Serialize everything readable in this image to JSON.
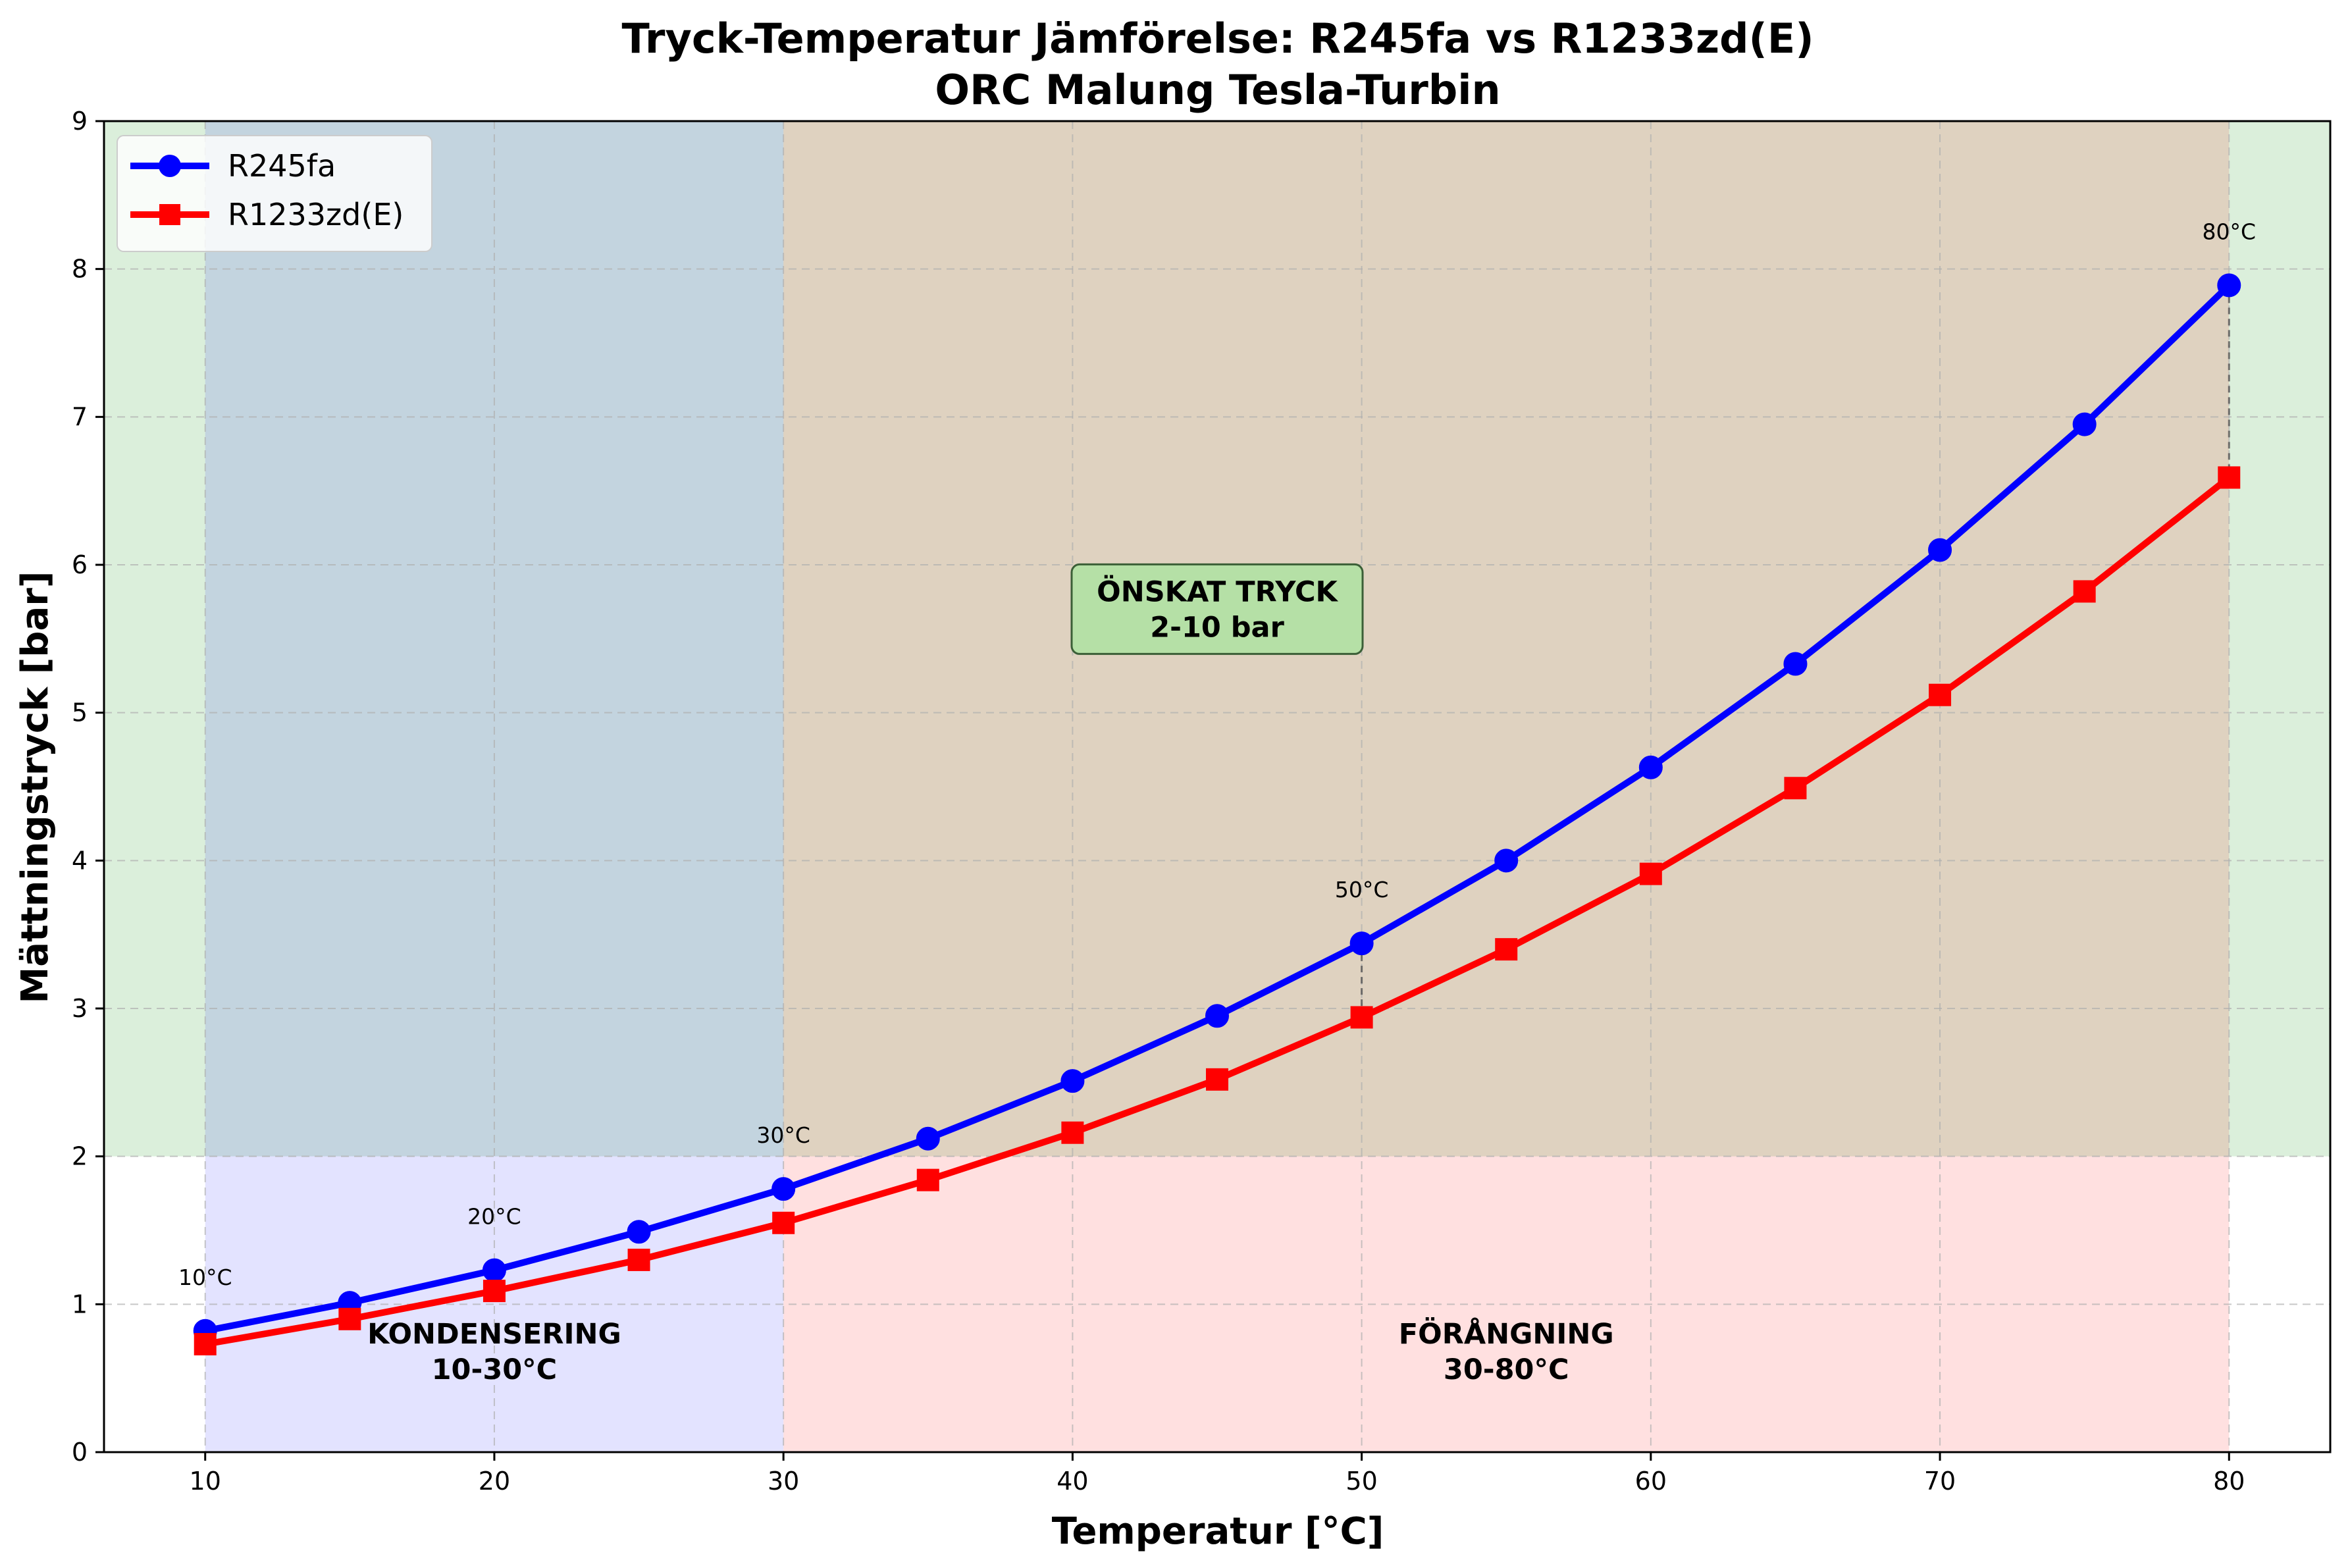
{
  "chart_data": {
    "type": "line",
    "title": "Tryck-Temperatur Jämförelse: R245fa vs R1233zd(E)",
    "subtitle": "ORC Malung Tesla-Turbin",
    "xlabel": "Temperatur [°C]",
    "ylabel": "Mättningstryck [bar]",
    "xlim": [
      6.5,
      83.5
    ],
    "ylim": [
      0,
      9
    ],
    "x_ticks": [
      10,
      20,
      30,
      40,
      50,
      60,
      70,
      80
    ],
    "y_ticks": [
      0,
      1,
      2,
      3,
      4,
      5,
      6,
      7,
      8,
      9
    ],
    "grid": true,
    "legend_position": "top-left",
    "x": [
      10,
      15,
      20,
      25,
      30,
      35,
      40,
      45,
      50,
      55,
      60,
      65,
      70,
      75,
      80
    ],
    "series": [
      {
        "name": "R245fa",
        "color": "#0000ff",
        "marker": "circle",
        "values": [
          0.82,
          1.01,
          1.23,
          1.49,
          1.78,
          2.12,
          2.51,
          2.95,
          3.44,
          4.0,
          4.63,
          5.33,
          6.1,
          6.95,
          7.89
        ]
      },
      {
        "name": "R1233zd(E)",
        "color": "#ff0000",
        "marker": "square",
        "values": [
          0.73,
          0.9,
          1.09,
          1.3,
          1.55,
          1.84,
          2.16,
          2.52,
          2.94,
          3.4,
          3.91,
          4.49,
          5.12,
          5.82,
          6.59
        ]
      }
    ],
    "regions": [
      {
        "type": "y-band",
        "from": 2,
        "to": 9,
        "color": "#2ca02c",
        "opacity": 0.17
      },
      {
        "type": "x-band",
        "from": 10,
        "to": 30,
        "color": "#0000ff",
        "opacity": 0.11
      },
      {
        "type": "x-band",
        "from": 30,
        "to": 80,
        "color": "#ff0000",
        "opacity": 0.12
      }
    ],
    "annotations": [
      {
        "lines": [
          "ÖNSKAT TRYCK",
          "2-10 bar"
        ],
        "x": 45,
        "y": 5.7,
        "boxed": true
      },
      {
        "lines": [
          "KONDENSERING",
          "10-30°C"
        ],
        "x": 20,
        "y": 0.68,
        "boxed": false
      },
      {
        "lines": [
          "FÖRÅNGNING",
          "30-80°C"
        ],
        "x": 55,
        "y": 0.68,
        "boxed": false
      }
    ],
    "point_labels": [
      {
        "text": "10°C",
        "x": 10
      },
      {
        "text": "20°C",
        "x": 20
      },
      {
        "text": "30°C",
        "x": 30
      },
      {
        "text": "50°C",
        "x": 50
      },
      {
        "text": "80°C",
        "x": 80
      }
    ],
    "difference_lines_at": [
      50,
      80
    ]
  }
}
